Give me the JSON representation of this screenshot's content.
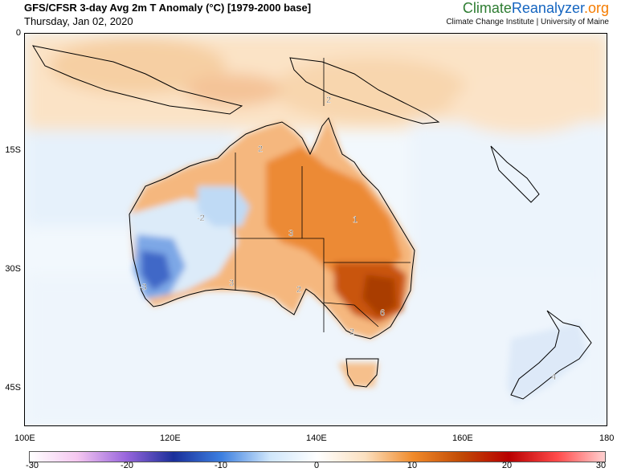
{
  "header": {
    "title": "GFS/CFSR 3-day Avg 2m T Anomaly (°C) [1979-2000 base]",
    "date": "Thursday, Jan 02, 2020"
  },
  "brand": {
    "name_part1": "Climate",
    "name_part2": "Reanalyzer",
    "name_part3": ".org",
    "affiliation": "Climate Change Institute | University of Maine"
  },
  "map": {
    "lat_labels": [
      "0",
      "15S",
      "30S",
      "45S"
    ],
    "lon_labels": [
      "100E",
      "120E",
      "140E",
      "160E",
      "180"
    ],
    "contour_labels": [
      "2",
      "-2",
      "3",
      "1",
      "-3",
      "3",
      "2",
      "6",
      "2",
      "2",
      "4"
    ]
  },
  "colorbar": {
    "ticks": [
      "-30",
      "-20",
      "-10",
      "0",
      "10",
      "20",
      "30"
    ],
    "colors": [
      "#ffffff",
      "#f5c6f0",
      "#9966dd",
      "#1a2f9a",
      "#3c7fe0",
      "#cfe6fb",
      "#ffffff",
      "#fbe0c0",
      "#f08a2a",
      "#c14a05",
      "#b80000",
      "#ff4a4a",
      "#ffd0d0"
    ]
  }
}
